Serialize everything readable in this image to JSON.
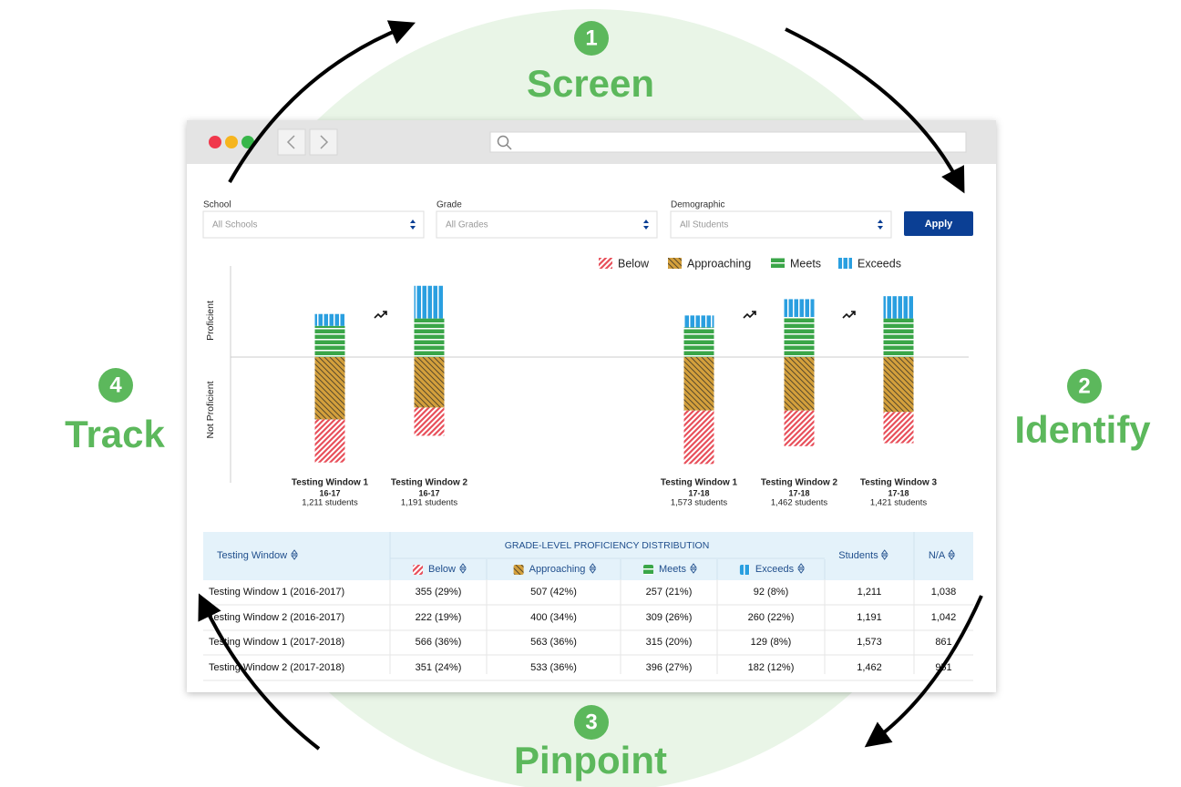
{
  "steps": [
    {
      "number": "1",
      "label": "Screen"
    },
    {
      "number": "2",
      "label": "Identify"
    },
    {
      "number": "3",
      "label": "Pinpoint"
    },
    {
      "number": "4",
      "label": "Track"
    }
  ],
  "filters": [
    {
      "label": "School",
      "placeholder": "All Schools"
    },
    {
      "label": "Grade",
      "placeholder": "All Grades"
    },
    {
      "label": "Demographic",
      "placeholder": "All Students"
    }
  ],
  "apply_button": "Apply",
  "chart_data": {
    "type": "bar",
    "stacked": true,
    "diverging": true,
    "y_labels": {
      "top": "Proficient",
      "bottom": "Not Proficient"
    },
    "categories": [
      "Testing Window 1",
      "Testing Window 2",
      "Testing Window 1",
      "Testing Window 2",
      "Testing Window 3"
    ],
    "periods": [
      "16-17",
      "16-17",
      "17-18",
      "17-18",
      "17-18"
    ],
    "student_counts": [
      "1,211 students",
      "1,191 students",
      "1,573 students",
      "1,462 students",
      "1,421 students"
    ],
    "legend": "top-right",
    "series": [
      {
        "name": "Below",
        "color": "#e8505b",
        "side": "below",
        "values": [
          29,
          19,
          36,
          24,
          21
        ]
      },
      {
        "name": "Approaching",
        "color": "#d4a03c",
        "side": "below",
        "values": [
          42,
          34,
          36,
          36,
          37
        ]
      },
      {
        "name": "Meets",
        "color": "#3aa648",
        "side": "above",
        "values": [
          21,
          26,
          20,
          27,
          26
        ]
      },
      {
        "name": "Exceeds",
        "color": "#2a9fe0",
        "side": "above",
        "values": [
          8,
          22,
          8,
          12,
          15
        ]
      }
    ]
  },
  "table": {
    "columns": {
      "window": "Testing Window",
      "group": "GRADE-LEVEL PROFICIENCY DISTRIBUTION",
      "levels": [
        "Below",
        "Approaching",
        "Meets",
        "Exceeds"
      ],
      "students": "Students",
      "na": "N/A"
    },
    "rows": [
      [
        "Testing Window 1 (2016-2017)",
        "355 (29%)",
        "507 (42%)",
        "257 (21%)",
        "92 (8%)",
        "1,211",
        "1,038"
      ],
      [
        "Testing Window 2 (2016-2017)",
        "222 (19%)",
        "400 (34%)",
        "309 (26%)",
        "260 (22%)",
        "1,191",
        "1,042"
      ],
      [
        "Testing Window 1 (2017-2018)",
        "566 (36%)",
        "563 (36%)",
        "315 (20%)",
        "129 (8%)",
        "1,573",
        "861"
      ],
      [
        "Testing Window 2 (2017-2018)",
        "351 (24%)",
        "533 (36%)",
        "396 (27%)",
        "182 (12%)",
        "1,462",
        "951"
      ]
    ]
  }
}
